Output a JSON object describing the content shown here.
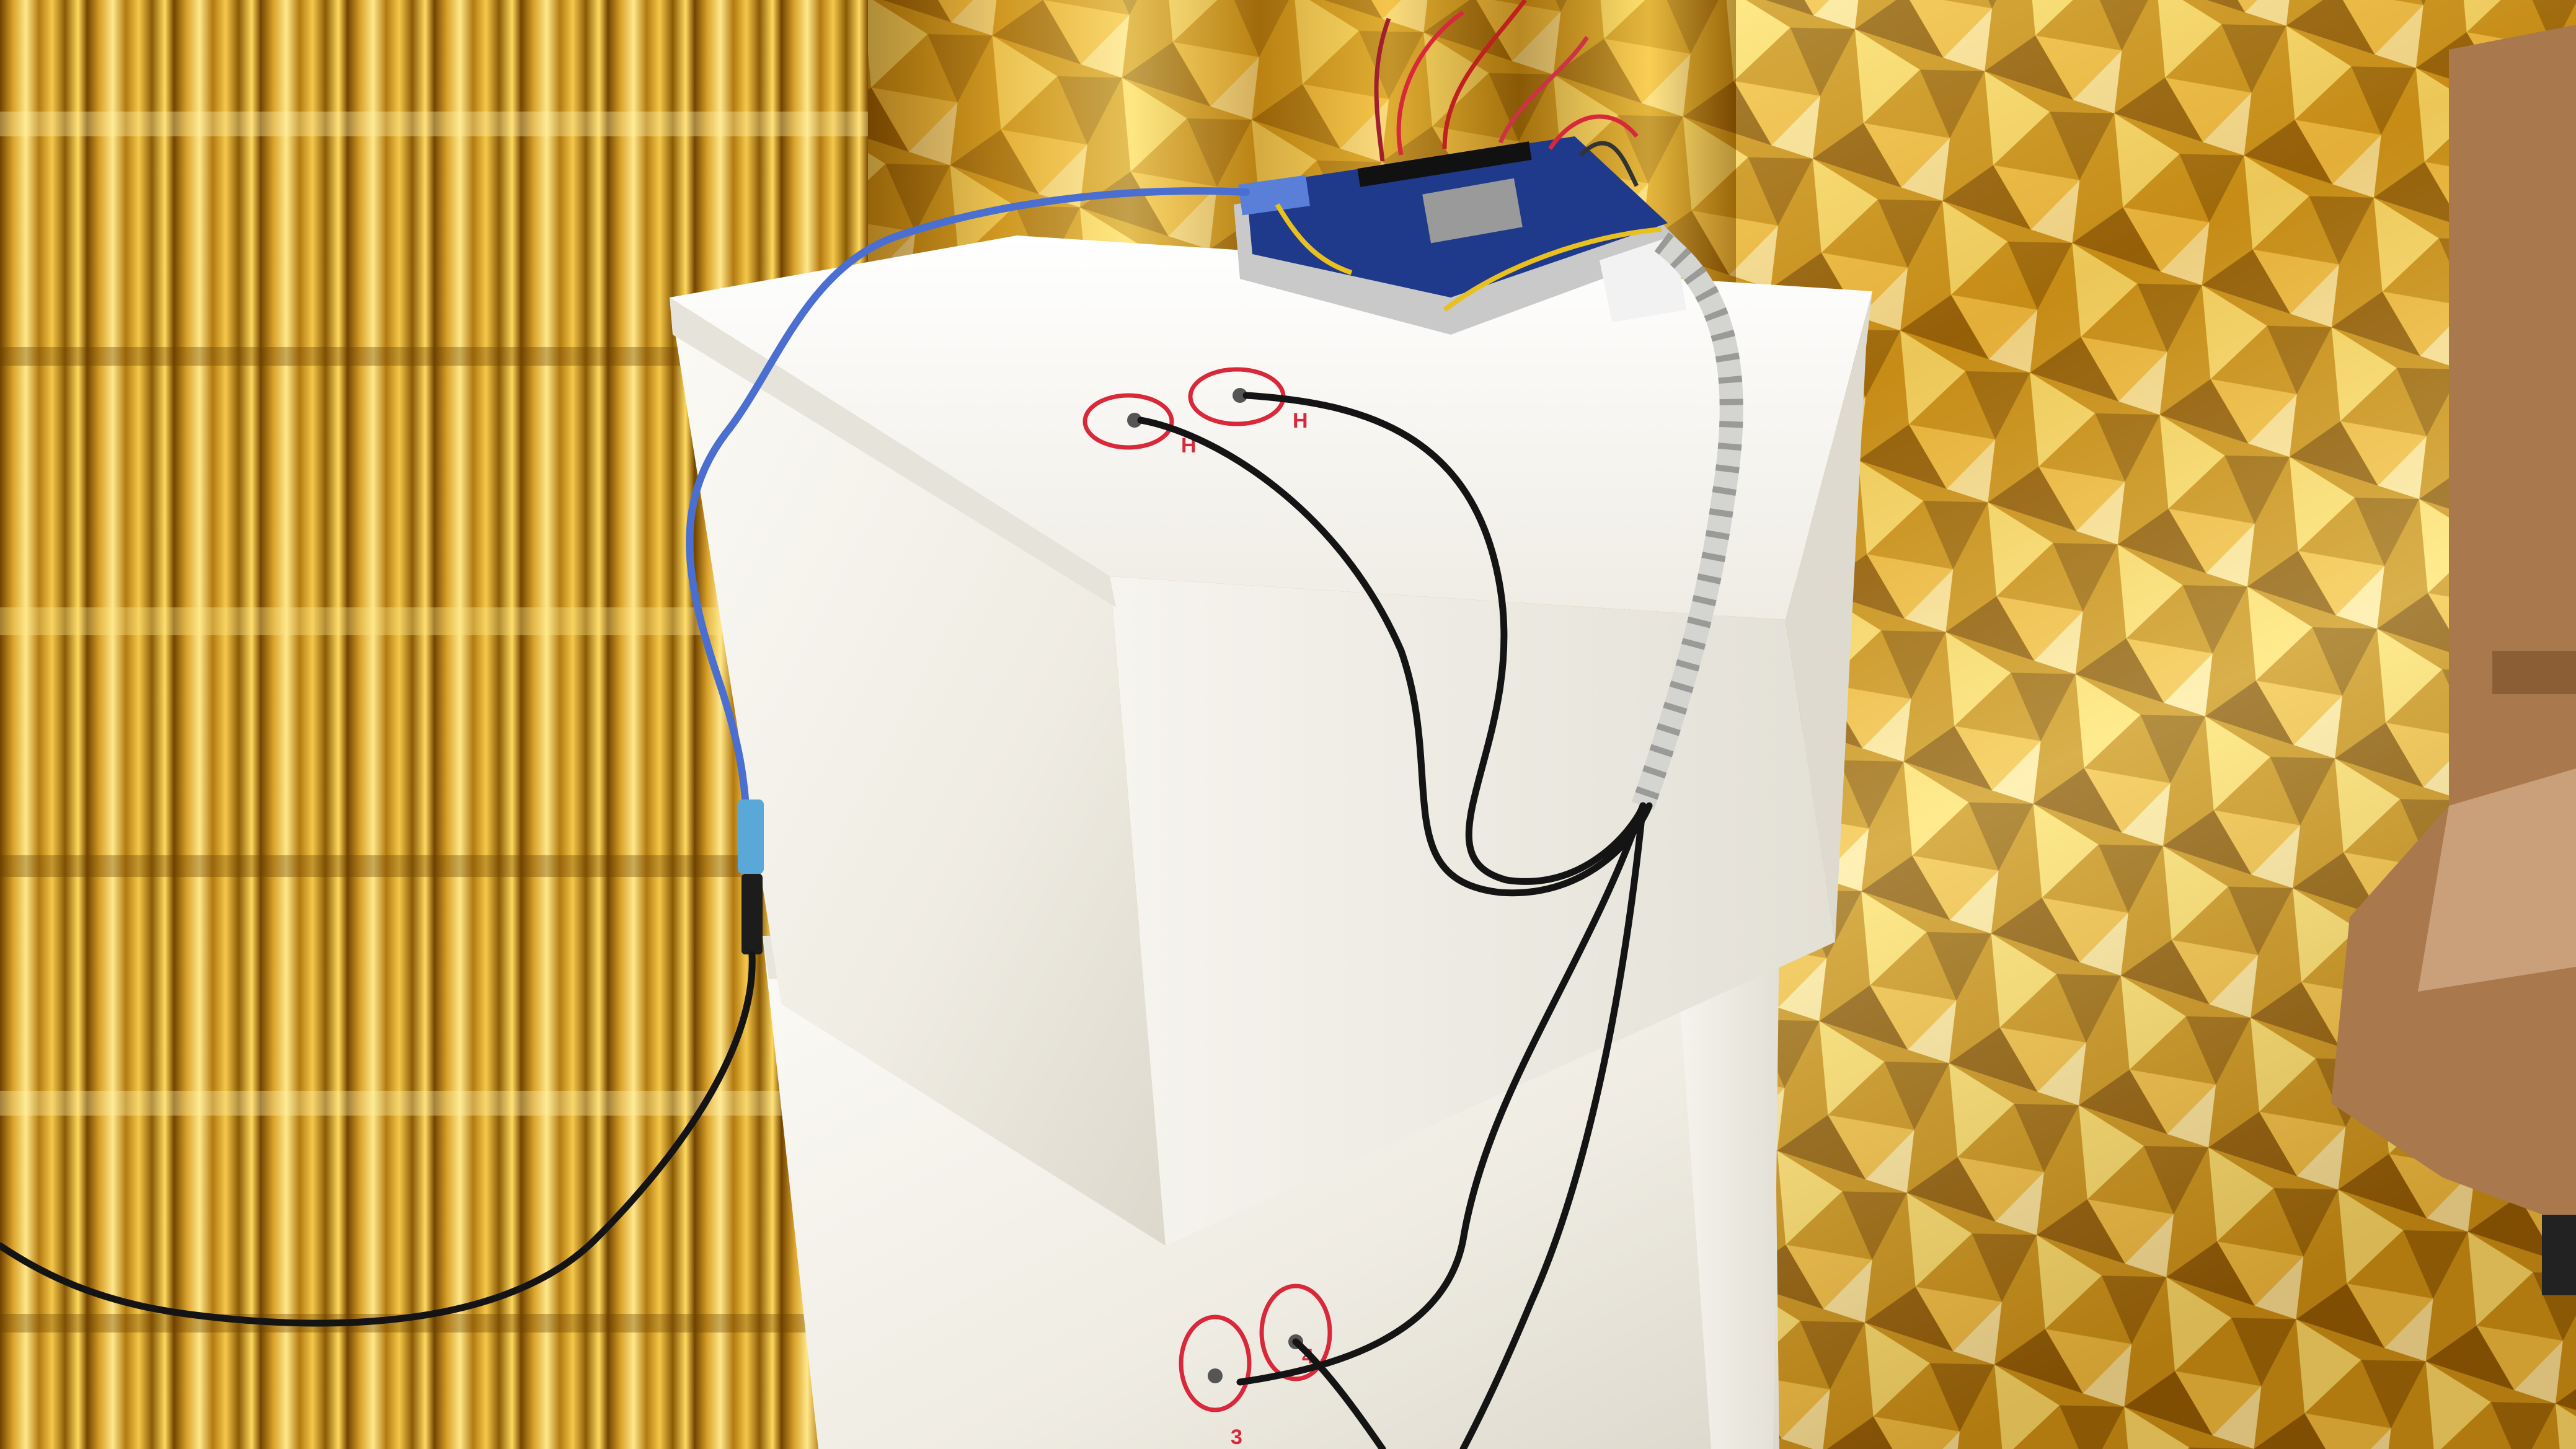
{
  "scene": {
    "description_key": "styrofoam-boxes-with-microcontroller",
    "colors": {
      "foil_gold_dark": "#7a4a00",
      "foil_gold_mid": "#c8901a",
      "foil_gold_light": "#ffe17a",
      "foil_highlight": "#fff6c8",
      "styrofoam": "#f2f0ea",
      "styrofoam_shadow": "#d9d6cc",
      "usb_cable_blue": "#4a6fd0",
      "sensor_cable_black": "#141414",
      "marker_red": "#d8283a",
      "board_blue": "#1f3a8a",
      "wood": "#b98a5e"
    },
    "hole_labels": {
      "top_left": "H",
      "top_right": "H",
      "bottom_left": "3",
      "bottom_right": "4"
    }
  }
}
